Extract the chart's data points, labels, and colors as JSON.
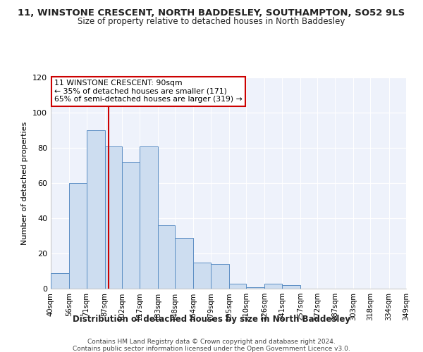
{
  "title": "11, WINSTONE CRESCENT, NORTH BADDESLEY, SOUTHAMPTON, SO52 9LS",
  "subtitle": "Size of property relative to detached houses in North Baddesley",
  "bar_values": [
    9,
    60,
    90,
    81,
    72,
    81,
    36,
    29,
    15,
    14,
    3,
    1,
    3,
    2,
    0,
    0,
    0,
    0,
    0,
    0
  ],
  "bin_edges": [
    40,
    56,
    71,
    87,
    102,
    117,
    133,
    148,
    164,
    179,
    195,
    210,
    226,
    241,
    257,
    272,
    287,
    303,
    318,
    334,
    349
  ],
  "bin_labels": [
    "40sqm",
    "56sqm",
    "71sqm",
    "87sqm",
    "102sqm",
    "117sqm",
    "133sqm",
    "148sqm",
    "164sqm",
    "179sqm",
    "195sqm",
    "210sqm",
    "226sqm",
    "241sqm",
    "257sqm",
    "272sqm",
    "287sqm",
    "303sqm",
    "318sqm",
    "334sqm",
    "349sqm"
  ],
  "bar_color": "#cdddf0",
  "bar_edge_color": "#5b8ec4",
  "vline_x": 90,
  "vline_color": "#cc0000",
  "ylabel": "Number of detached properties",
  "xlabel": "Distribution of detached houses by size in North Baddesley",
  "ylim": [
    0,
    120
  ],
  "yticks": [
    0,
    20,
    40,
    60,
    80,
    100,
    120
  ],
  "annotation_title": "11 WINSTONE CRESCENT: 90sqm",
  "annotation_line1": "← 35% of detached houses are smaller (171)",
  "annotation_line2": "65% of semi-detached houses are larger (319) →",
  "annotation_box_color": "#cc0000",
  "footer_line1": "Contains HM Land Registry data © Crown copyright and database right 2024.",
  "footer_line2": "Contains public sector information licensed under the Open Government Licence v3.0.",
  "background_color": "#ffffff",
  "plot_bg_color": "#eef2fb"
}
